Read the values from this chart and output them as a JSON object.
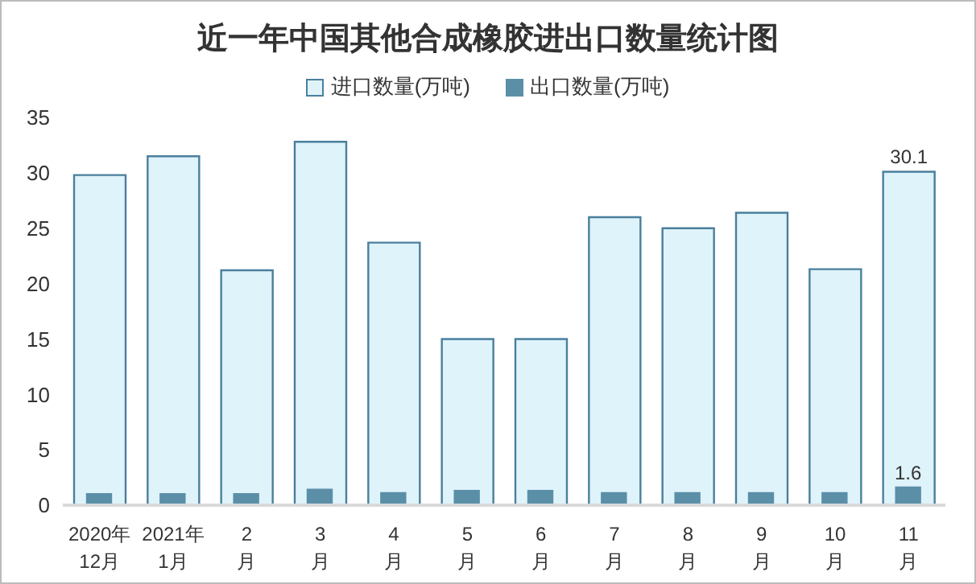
{
  "chart_data": {
    "type": "bar",
    "title": "近一年中国其他合成橡胶进出口数量统计图",
    "categories": [
      "2020年\n12月",
      "2021年\n1月",
      "2\n月",
      "3\n月",
      "4\n月",
      "5\n月",
      "6\n月",
      "7\n月",
      "8\n月",
      "9\n月",
      "10\n月",
      "11\n月"
    ],
    "series": [
      {
        "name": "进口数量(万吨)",
        "color": "#dff3fa",
        "values": [
          29.8,
          31.5,
          21.2,
          32.8,
          23.7,
          15,
          15,
          26.0,
          25.0,
          26.4,
          21.3,
          30.1
        ],
        "value_labels": [
          null,
          null,
          null,
          null,
          null,
          null,
          null,
          null,
          null,
          null,
          null,
          "30.1"
        ]
      },
      {
        "name": "出口数量(万吨)",
        "color": "#5b8fa8",
        "values": [
          1.0,
          1.0,
          1.0,
          1.4,
          1.1,
          1.3,
          1.3,
          1.1,
          1.1,
          1.1,
          1.1,
          1.6
        ],
        "value_labels": [
          null,
          null,
          null,
          null,
          null,
          null,
          null,
          null,
          null,
          null,
          null,
          "1.6"
        ]
      }
    ],
    "ylim": [
      0,
      35
    ],
    "yticks": [
      0,
      5,
      10,
      15,
      20,
      25,
      30,
      35
    ],
    "legend": "top"
  }
}
